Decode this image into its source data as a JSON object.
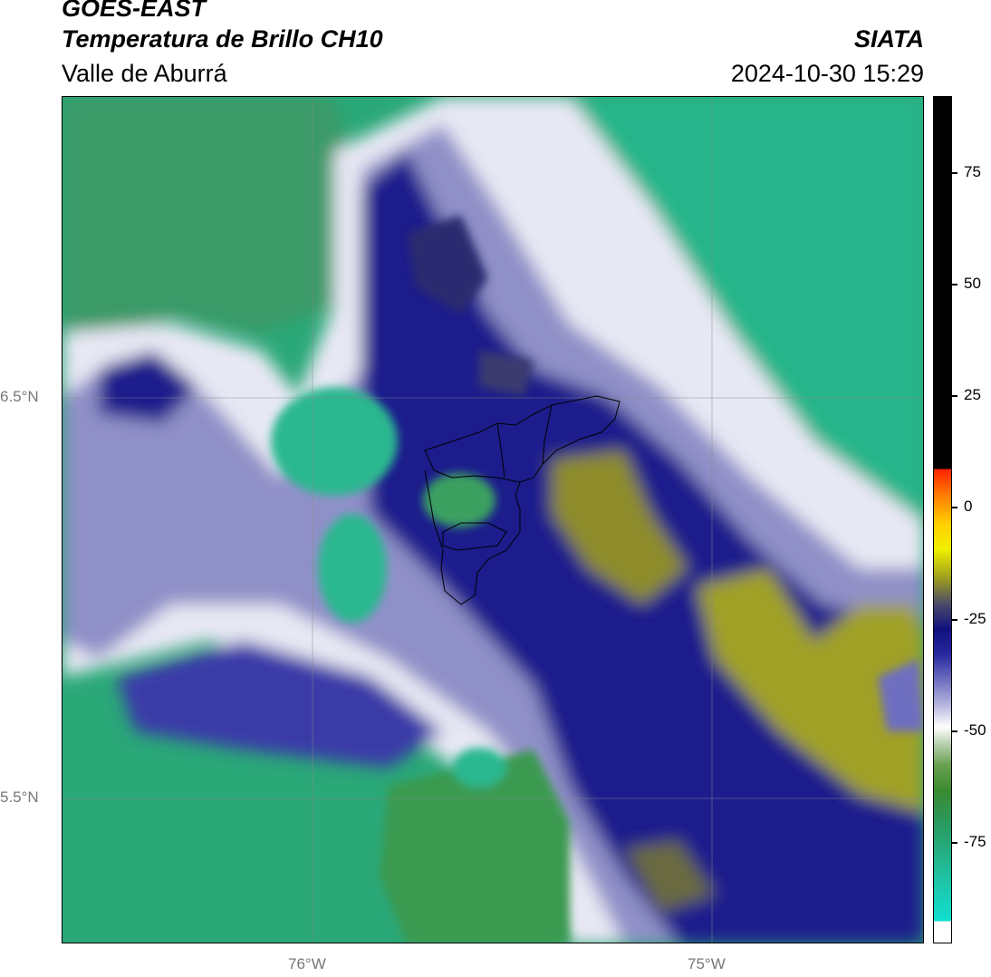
{
  "header": {
    "satellite": "GOES-EAST",
    "product": "Temperatura de Brillo CH10",
    "region": "Valle de Aburrá",
    "org": "SIATA",
    "datetime": "2024-10-30 15:29"
  },
  "axes": {
    "lat_labels": [
      "6.5°N",
      "5.5°N"
    ],
    "lon_labels": [
      "76°W",
      "75°W"
    ]
  },
  "colorbar": {
    "ticks": [
      "75",
      "50",
      "25",
      "0",
      "-25",
      "-50",
      "-75"
    ],
    "colors": {
      "warm": "#000000",
      "hot": "#ff2200",
      "yellow": "#f0f000",
      "olive": "#9a9a20",
      "navy": "#101080",
      "lavender": "#b8b8e0",
      "white": "#ffffff",
      "green": "#3a8a30",
      "teal": "#20c0a0"
    }
  }
}
